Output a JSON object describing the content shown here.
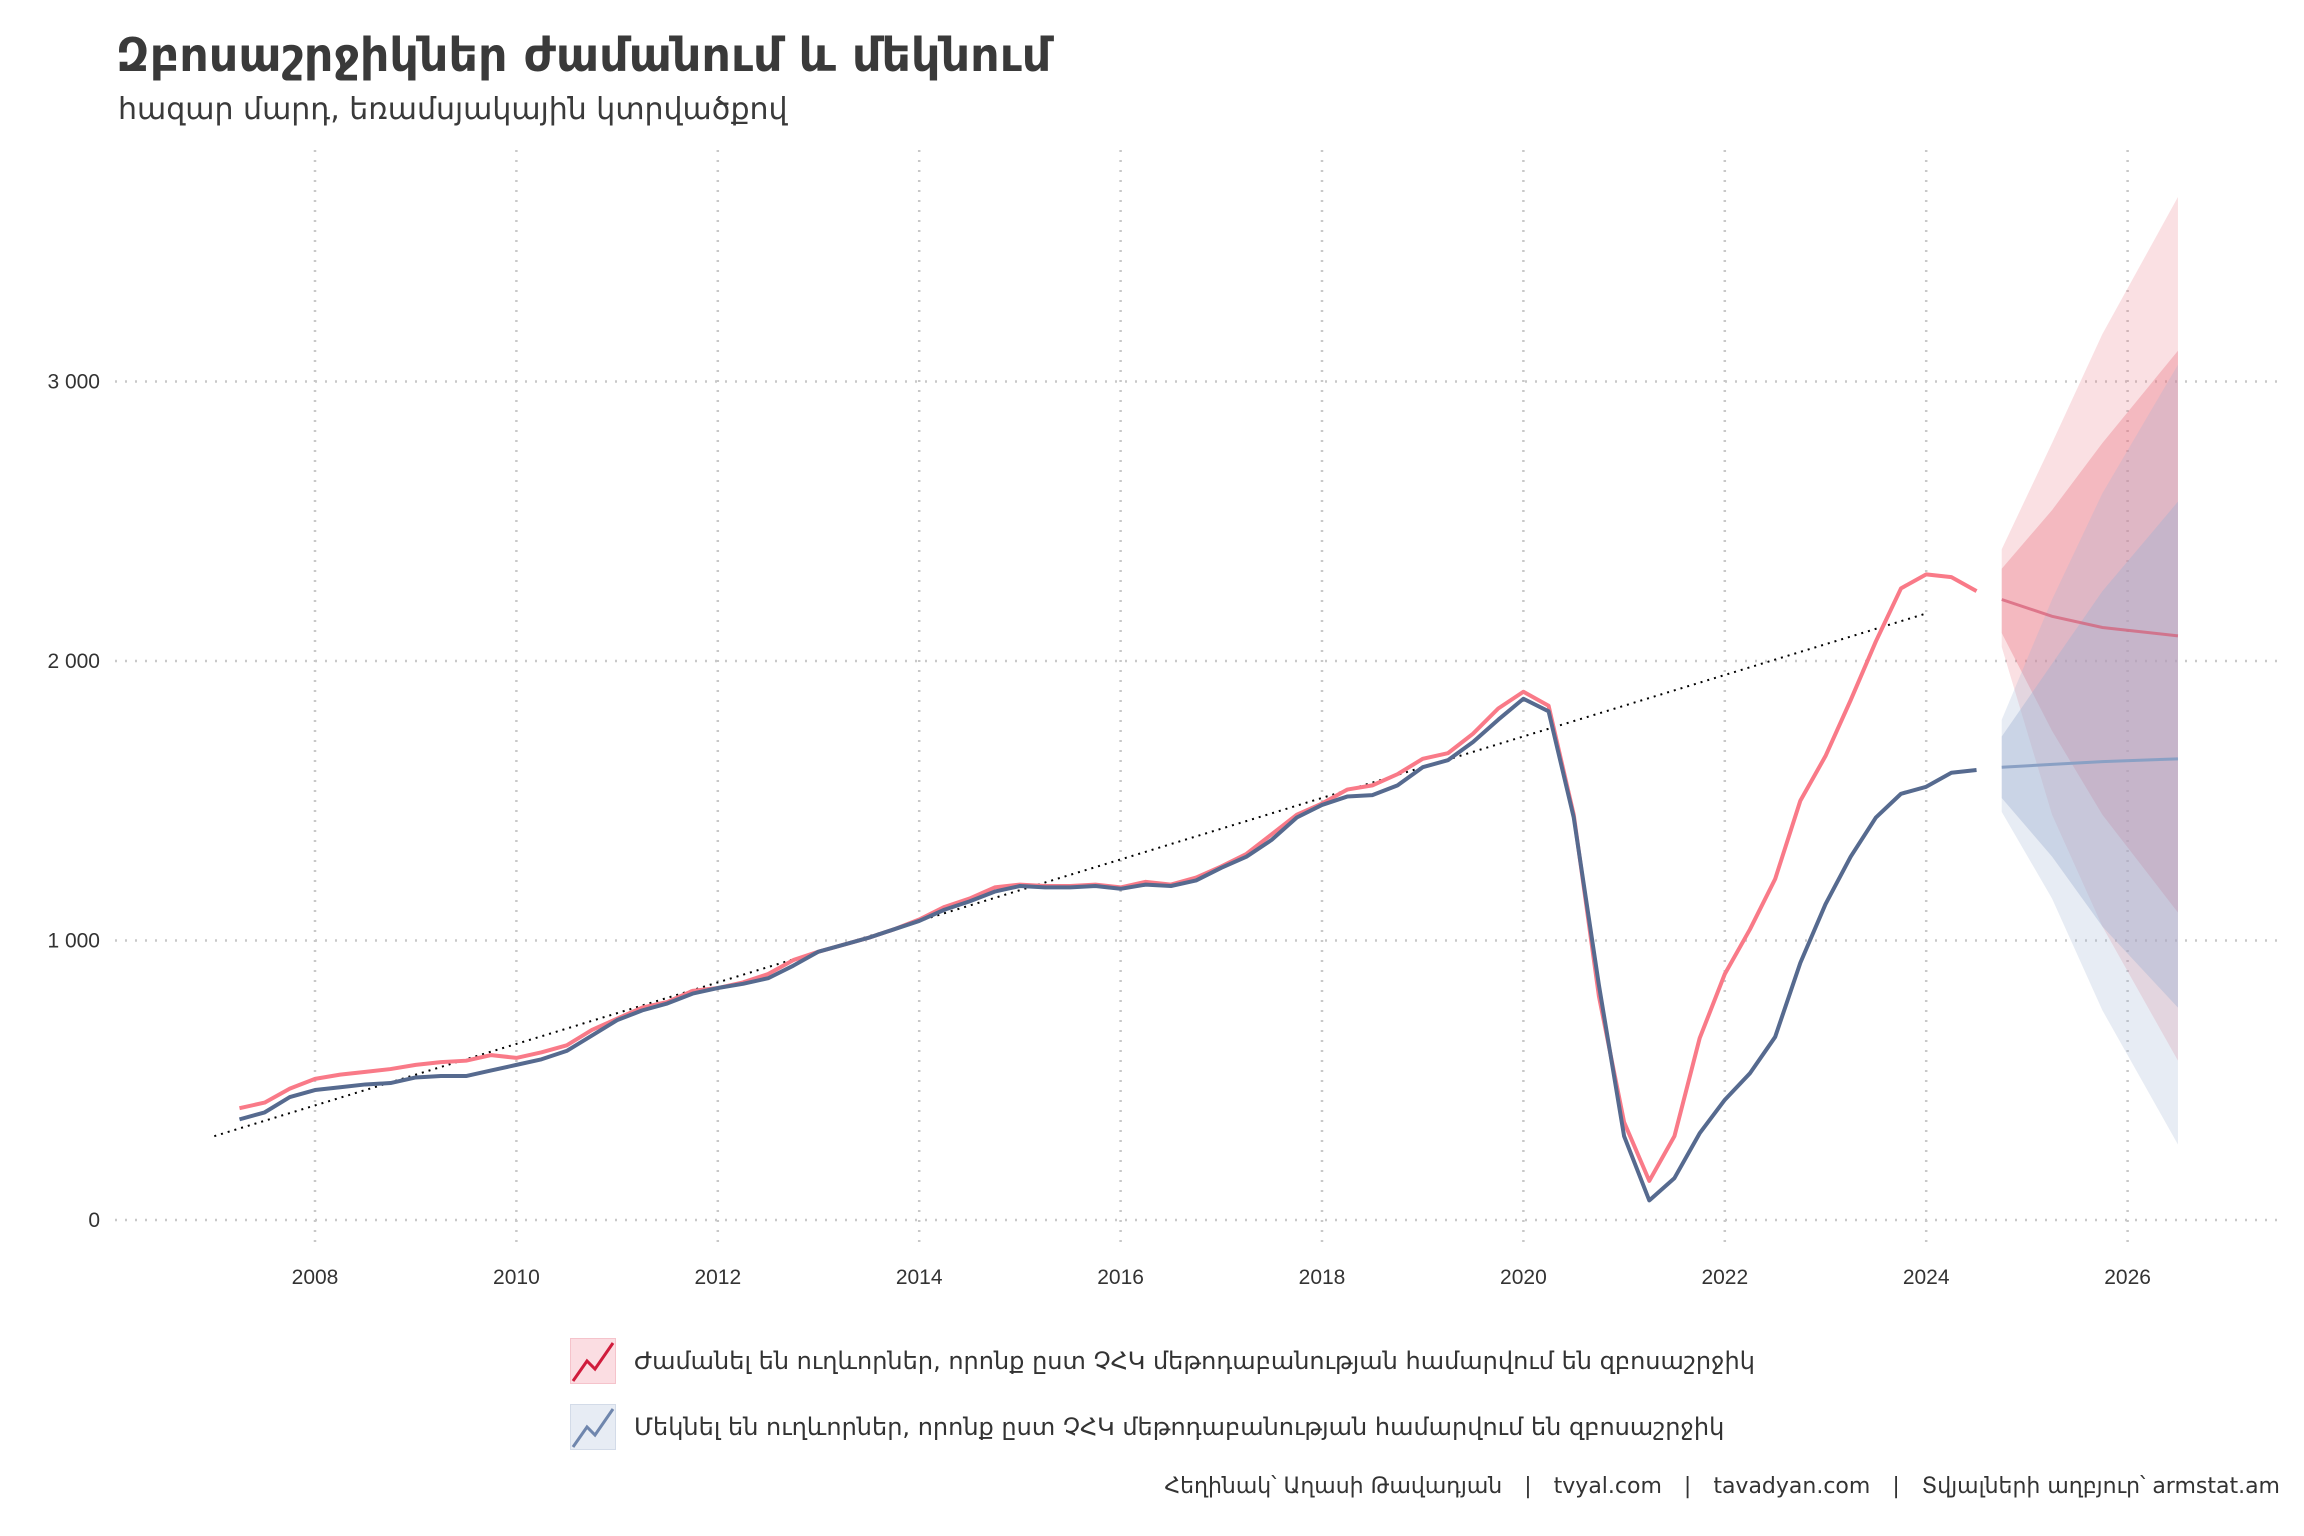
{
  "title": "Զբոսաշրջիկներ ժամանում և մեկնում",
  "subtitle": "հազար մարդ, եռամսյակային կտրվածքով",
  "caption": {
    "author": "Հեղինակ՝ Աղասի Թավադյան",
    "site1": "tvyal.com",
    "site2": "tavadyan.com",
    "source": "Տվյալների աղբյուր՝ armstat.am"
  },
  "colors": {
    "arrivals": "#f97a88",
    "departures": "#566a8f",
    "arrivals_band": "#e8707f",
    "departures_band": "#9fb2d3",
    "arrivals_forecast": "#d45a74",
    "departures_forecast": "#8aa0c4",
    "trend": "#000000"
  },
  "chart_data": {
    "type": "line",
    "title": "Զբոսաշրջիկներ ժամանում և մեկնում",
    "subtitle": "հազար մարդ, եռամսյակային կտրվածքով",
    "xlabel": "",
    "ylabel": "",
    "xlim": [
      2006.2,
      2027.4
    ],
    "ylim": [
      -100,
      3700
    ],
    "xticks": [
      2008,
      2010,
      2012,
      2014,
      2016,
      2018,
      2020,
      2022,
      2024,
      2026
    ],
    "xtick_labels": [
      "2008",
      "2010",
      "2012",
      "2014",
      "2016",
      "2018",
      "2020",
      "2022",
      "2024",
      "2026"
    ],
    "yticks": [
      0,
      1000,
      2000,
      3000
    ],
    "ytick_labels": [
      "0",
      "1 000",
      "2 000",
      "3 000"
    ],
    "grid": true,
    "legend_position": "bottom",
    "x_start": 2007.25,
    "x_step": 0.25,
    "series": [
      {
        "name": "Ժամանել են ուղևորներ, որոնք ըստ ՉՀԿ մեթոդաբանության համարվում են զբոսաշրջիկ",
        "values": [
          400,
          420,
          470,
          505,
          520,
          530,
          540,
          555,
          565,
          570,
          590,
          580,
          600,
          625,
          680,
          720,
          760,
          780,
          820,
          830,
          850,
          880,
          930,
          960,
          985,
          1010,
          1040,
          1075,
          1120,
          1150,
          1190,
          1200,
          1195,
          1195,
          1200,
          1190,
          1210,
          1200,
          1225,
          1265,
          1310,
          1380,
          1450,
          1490,
          1540,
          1555,
          1595,
          1650,
          1670,
          1740,
          1830,
          1890,
          1840,
          1450,
          800,
          350,
          140,
          300,
          650,
          880,
          1040,
          1220,
          1500,
          1660,
          1860,
          2070,
          2260,
          2310,
          2300,
          2250
        ]
      },
      {
        "name": "Մեկնել են ուղևորներ, որոնք ըստ ՉՀԿ մեթոդաբանության համարվում են զբոսաշրջիկ",
        "values": [
          360,
          385,
          440,
          465,
          475,
          485,
          490,
          510,
          515,
          515,
          535,
          555,
          575,
          605,
          660,
          715,
          750,
          775,
          810,
          830,
          845,
          865,
          910,
          960,
          985,
          1010,
          1040,
          1070,
          1110,
          1140,
          1175,
          1195,
          1190,
          1190,
          1195,
          1185,
          1200,
          1195,
          1215,
          1260,
          1300,
          1360,
          1440,
          1485,
          1515,
          1520,
          1555,
          1620,
          1645,
          1710,
          1790,
          1865,
          1820,
          1440,
          840,
          300,
          70,
          150,
          310,
          430,
          525,
          655,
          920,
          1130,
          1300,
          1440,
          1525,
          1550,
          1600,
          1610
        ]
      }
    ],
    "forecast": {
      "x": [
        2024.75,
        2025.25,
        2025.75,
        2026.5
      ],
      "arrivals": {
        "mean": [
          2220,
          2160,
          2120,
          2090
        ],
        "lo80": [
          2100,
          1750,
          1450,
          1100
        ],
        "hi80": [
          2330,
          2540,
          2780,
          3110
        ],
        "lo95": [
          2050,
          1450,
          1050,
          570
        ],
        "hi95": [
          2400,
          2780,
          3170,
          3660
        ]
      },
      "departures": {
        "mean": [
          1620,
          1630,
          1640,
          1650
        ],
        "lo80": [
          1510,
          1300,
          1050,
          760
        ],
        "hi80": [
          1730,
          1990,
          2250,
          2570
        ],
        "lo95": [
          1460,
          1150,
          750,
          270
        ],
        "hi95": [
          1790,
          2220,
          2600,
          3060
        ]
      }
    },
    "trend": {
      "x": [
        2007.0,
        2024.0
      ],
      "y": [
        300,
        2170
      ]
    }
  }
}
